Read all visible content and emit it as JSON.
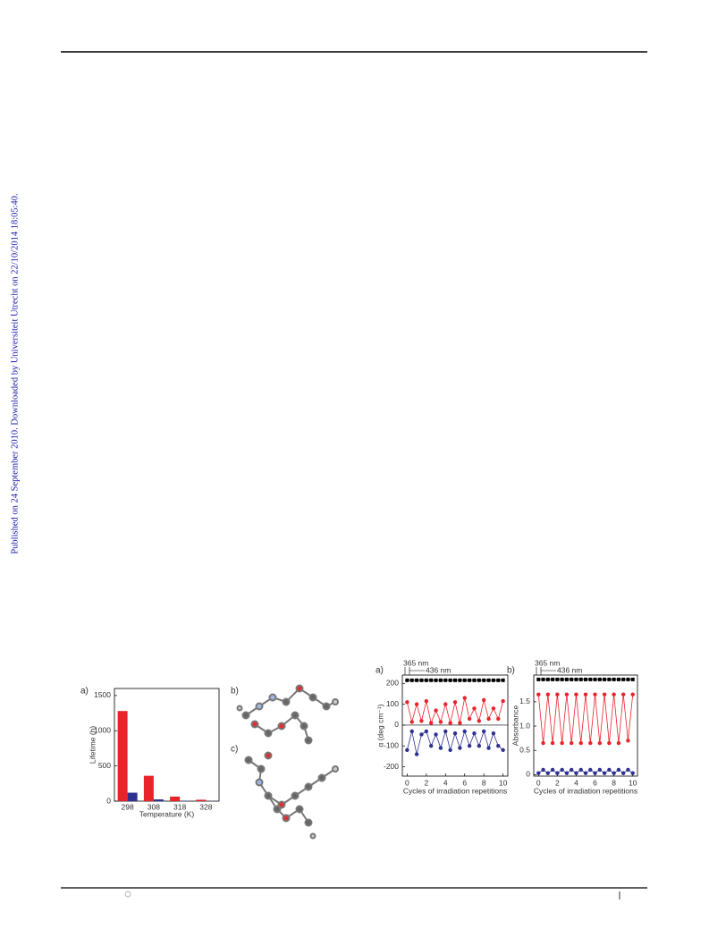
{
  "side_note": "Published on 24 September 2010. Downloaded by Universiteit Utrecht on 22/10/2014 18:05:40.",
  "panel_labels": [
    "b)",
    "c)"
  ],
  "chart_data": [
    {
      "type": "bar",
      "label": "a)",
      "xlabel": "Temperature (K)",
      "ylabel": "Lifetime (h)",
      "categories": [
        "298",
        "308",
        "318",
        "328"
      ],
      "series": [
        {
          "color": "#e8232a",
          "values": [
            1280,
            360,
            65,
            20
          ]
        },
        {
          "color": "#2e3192",
          "values": [
            120,
            25,
            5,
            3
          ]
        }
      ],
      "ylim": [
        0,
        1600
      ],
      "yticks": [
        0,
        500,
        1000,
        1500
      ]
    },
    {
      "type": "line",
      "label": "a)",
      "xlabel": "Cycles of irradiation repetitions",
      "ylabel": "α (deg cm⁻¹)",
      "annotations": [
        "365 nm",
        "436 nm"
      ],
      "x": [
        0,
        0.5,
        1,
        1.5,
        2,
        2.5,
        3,
        3.5,
        4,
        4.5,
        5,
        5.5,
        6,
        6.5,
        7,
        7.5,
        8,
        8.5,
        9,
        9.5,
        10
      ],
      "series": [
        {
          "color": "#000000",
          "marker": "square",
          "values": [
            215,
            215,
            215,
            215,
            215,
            215,
            215,
            215,
            215,
            215,
            215,
            215,
            215,
            215,
            215,
            215,
            215,
            215,
            215,
            215,
            215
          ]
        },
        {
          "color": "#e8232a",
          "marker": "circle",
          "values": [
            110,
            15,
            100,
            20,
            115,
            10,
            70,
            15,
            100,
            10,
            110,
            10,
            130,
            30,
            80,
            20,
            120,
            30,
            80,
            30,
            115
          ]
        },
        {
          "color": "#2e3192",
          "marker": "circle",
          "values": [
            -120,
            -30,
            -140,
            -45,
            -30,
            -100,
            -45,
            -110,
            -30,
            -120,
            -40,
            -110,
            -30,
            -100,
            -40,
            -100,
            -30,
            -110,
            -40,
            -100,
            -120
          ]
        }
      ],
      "reference_line": 0,
      "xlim": [
        -0.5,
        10.5
      ],
      "xticks": [
        0,
        2,
        4,
        6,
        8,
        10
      ],
      "ylim": [
        -245,
        240
      ],
      "yticks": [
        -200,
        -100,
        0,
        100,
        200
      ]
    },
    {
      "type": "line",
      "label": "b)",
      "xlabel": "Cycles of irradiation repetitions",
      "ylabel": "Absorbance",
      "annotations": [
        "365 nm",
        "436 nm"
      ],
      "x": [
        0,
        0.5,
        1,
        1.5,
        2,
        2.5,
        3,
        3.5,
        4,
        4.5,
        5,
        5.5,
        6,
        6.5,
        7,
        7.5,
        8,
        8.5,
        9,
        9.5,
        10
      ],
      "series": [
        {
          "color": "#000000",
          "marker": "square",
          "values": [
            1.96,
            1.96,
            1.96,
            1.96,
            1.96,
            1.96,
            1.96,
            1.96,
            1.96,
            1.96,
            1.96,
            1.96,
            1.96,
            1.96,
            1.96,
            1.96,
            1.96,
            1.96,
            1.96,
            1.96,
            1.96
          ]
        },
        {
          "color": "#e8232a",
          "marker": "circle",
          "values": [
            1.65,
            0.65,
            1.65,
            0.65,
            1.65,
            0.65,
            1.65,
            0.65,
            1.65,
            0.65,
            1.65,
            0.65,
            1.65,
            0.65,
            1.65,
            0.65,
            1.65,
            0.65,
            1.65,
            0.7,
            1.65
          ]
        },
        {
          "color": "#2e3192",
          "marker": "circle",
          "values": [
            0.03,
            0.1,
            0.03,
            0.1,
            0.03,
            0.1,
            0.03,
            0.1,
            0.03,
            0.1,
            0.03,
            0.1,
            0.03,
            0.1,
            0.03,
            0.1,
            0.03,
            0.1,
            0.03,
            0.1,
            0.03
          ]
        }
      ],
      "xlim": [
        -0.5,
        10.5
      ],
      "xticks": [
        0,
        2,
        4,
        6,
        8,
        10
      ],
      "ylim": [
        -0.03,
        2.05
      ],
      "yticks": [
        0,
        0.5,
        {
          "value": 1.0,
          "label": "1.0"
        },
        1.5
      ]
    }
  ]
}
